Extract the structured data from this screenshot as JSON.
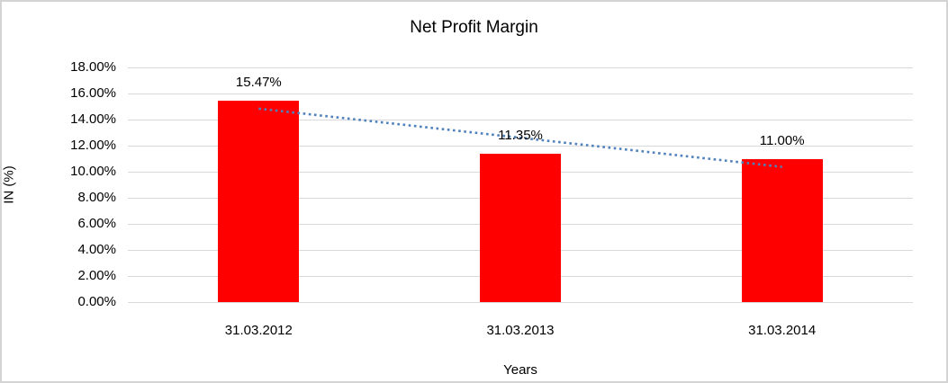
{
  "chart_data": {
    "type": "bar",
    "title": "Net Profit Margin",
    "xlabel": "Years",
    "ylabel": "IN (%)",
    "categories": [
      "31.03.2012",
      "31.03.2013",
      "31.03.2014"
    ],
    "values": [
      15.47,
      11.35,
      11.0
    ],
    "data_labels": [
      "15.47%",
      "11.35%",
      "11.00%"
    ],
    "y_ticks": [
      "18.00%",
      "16.00%",
      "14.00%",
      "12.00%",
      "10.00%",
      "8.00%",
      "6.00%",
      "4.00%",
      "2.00%",
      "0.00%"
    ],
    "ylim": [
      0,
      18
    ],
    "y_tick_step": 2,
    "grid": true,
    "legend": "none",
    "bar_color": "#ff0000",
    "gridline_color": "#d9d9d9",
    "text_color": "#000000",
    "background_color": "#ffffff",
    "border_color": "#d4d4d4",
    "trendline": {
      "type": "linear",
      "style": "dotted",
      "color": "#4f81bd",
      "start_value": 14.84,
      "end_value": 10.37
    }
  }
}
